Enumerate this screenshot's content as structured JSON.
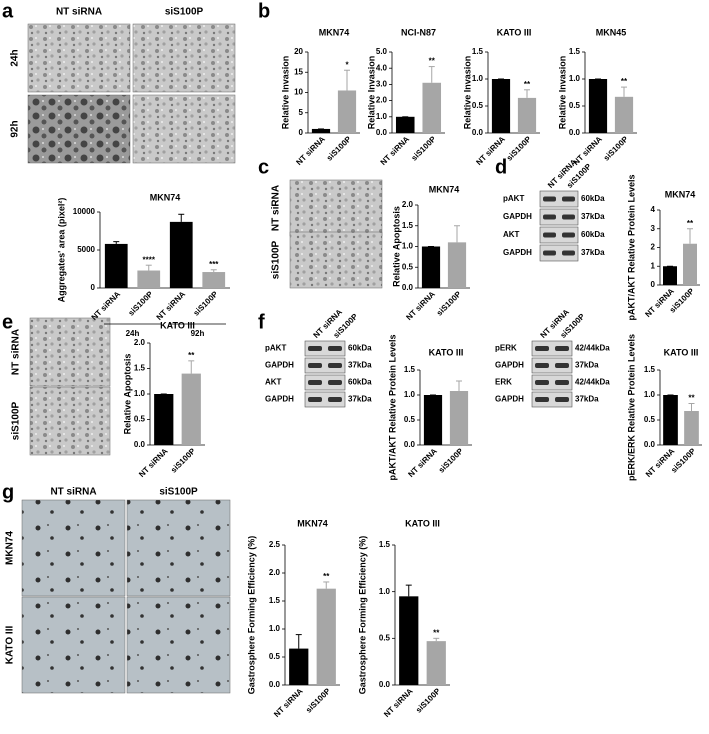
{
  "chart_data": [
    {
      "type": "bar",
      "title": "MKN74",
      "y_label": "Aggregates' area (pixel²)",
      "categories": [
        "NT siRNA",
        "siS100P",
        "NT siRNA",
        "siS100P"
      ],
      "groups": [
        "24h",
        "92h"
      ],
      "values": [
        5800,
        2300,
        8700,
        2100
      ],
      "errors": [
        300,
        700,
        1000,
        300
      ],
      "significance": [
        null,
        "****",
        null,
        "***"
      ],
      "colors": [
        "#000000",
        "#a6a6a6",
        "#000000",
        "#a6a6a6"
      ],
      "ylim": [
        0,
        10000
      ],
      "yticks": [
        0,
        5000,
        10000
      ]
    },
    {
      "type": "bar",
      "title": "MKN74",
      "y_label": "Relative Invasion",
      "categories": [
        "NT siRNA",
        "siS100P"
      ],
      "values": [
        1.0,
        10.5
      ],
      "errors": [
        0,
        5
      ],
      "significance": [
        null,
        "*"
      ],
      "colors": [
        "#000000",
        "#a6a6a6"
      ],
      "ylim": [
        0,
        20
      ],
      "yticks": [
        0,
        5,
        10,
        15,
        20
      ]
    },
    {
      "type": "bar",
      "title": "NCI-N87",
      "y_label": "Relative Invasion",
      "categories": [
        "NT siRNA",
        "siS100P"
      ],
      "values": [
        1.0,
        3.1
      ],
      "errors": [
        0,
        1.0
      ],
      "significance": [
        null,
        "**"
      ],
      "colors": [
        "#000000",
        "#a6a6a6"
      ],
      "ylim": [
        0,
        5
      ],
      "yticks": [
        {
          "value": 0,
          "label": "0.0"
        },
        {
          "value": 1,
          "label": "1.0"
        },
        {
          "value": 2,
          "label": "2.0"
        },
        {
          "value": 3,
          "label": "3.0"
        },
        {
          "value": 4,
          "label": "4.0"
        },
        {
          "value": 5,
          "label": "5.0"
        }
      ]
    },
    {
      "type": "bar",
      "title": "KATO III",
      "y_label": "Relative Invasion",
      "categories": [
        "NT siRNA",
        "siS100P"
      ],
      "values": [
        1.0,
        0.65
      ],
      "errors": [
        0,
        0.15
      ],
      "significance": [
        null,
        "**"
      ],
      "colors": [
        "#000000",
        "#a6a6a6"
      ],
      "ylim": [
        0,
        1.5
      ],
      "yticks": [
        {
          "value": 0,
          "label": "0.0"
        },
        0.5,
        {
          "value": 1,
          "label": "1.0"
        },
        1.5
      ]
    },
    {
      "type": "bar",
      "title": "MKN45",
      "y_label": "Relative Invasion",
      "categories": [
        "NT siRNA",
        "siS100P"
      ],
      "values": [
        1.0,
        0.67
      ],
      "errors": [
        0,
        0.18
      ],
      "significance": [
        null,
        "**"
      ],
      "colors": [
        "#000000",
        "#a6a6a6"
      ],
      "ylim": [
        0,
        1.5
      ],
      "yticks": [
        {
          "value": 0,
          "label": "0.0"
        },
        0.5,
        {
          "value": 1,
          "label": "1.0"
        },
        1.5
      ]
    },
    {
      "type": "bar",
      "title": "MKN74",
      "y_label": "Relative Apoptosis",
      "categories": [
        "NT siRNA",
        "siS100P"
      ],
      "values": [
        1.0,
        1.1
      ],
      "errors": [
        0,
        0.4
      ],
      "significance": [
        null,
        null
      ],
      "colors": [
        "#000000",
        "#a6a6a6"
      ],
      "ylim": [
        0,
        2
      ],
      "yticks": [
        {
          "value": 0,
          "label": "0.0"
        },
        0.5,
        {
          "value": 1,
          "label": "1.0"
        },
        1.5,
        {
          "value": 2,
          "label": "2.0"
        }
      ]
    },
    {
      "type": "bar",
      "title": "MKN74",
      "y_label": "pAKT/AKT Relative Protein Levels",
      "categories": [
        "NT siRNA",
        "siS100P"
      ],
      "values": [
        1.0,
        2.2
      ],
      "errors": [
        0,
        0.8
      ],
      "significance": [
        null,
        "**"
      ],
      "colors": [
        "#000000",
        "#a6a6a6"
      ],
      "ylim": [
        0,
        4
      ],
      "yticks": [
        0,
        1,
        2,
        3,
        4
      ]
    },
    {
      "type": "bar",
      "title": "KATO III",
      "y_label": "Relative Apoptosis",
      "categories": [
        "NT siRNA",
        "siS100P"
      ],
      "values": [
        1.0,
        1.4
      ],
      "errors": [
        0,
        0.25
      ],
      "significance": [
        null,
        "**"
      ],
      "colors": [
        "#000000",
        "#a6a6a6"
      ],
      "ylim": [
        0,
        2
      ],
      "yticks": [
        {
          "value": 0,
          "label": "0.0"
        },
        0.5,
        {
          "value": 1,
          "label": "1.0"
        },
        1.5,
        {
          "value": 2,
          "label": "2.0"
        }
      ]
    },
    {
      "type": "bar",
      "title": "KATO III",
      "y_label": "pAKT/AKT Relative Protein Levels",
      "categories": [
        "NT siRNA",
        "siS100P"
      ],
      "values": [
        1.0,
        1.08
      ],
      "errors": [
        0,
        0.2
      ],
      "significance": [
        null,
        null
      ],
      "colors": [
        "#000000",
        "#a6a6a6"
      ],
      "ylim": [
        0,
        1.5
      ],
      "yticks": [
        {
          "value": 0,
          "label": "0.0"
        },
        0.5,
        {
          "value": 1,
          "label": "1.0"
        },
        1.5
      ]
    },
    {
      "type": "bar",
      "title": "KATO III",
      "y_label": "pERK/ERK Relative Protein Levels",
      "categories": [
        "NT siRNA",
        "siS100P"
      ],
      "values": [
        1.0,
        0.68
      ],
      "errors": [
        0,
        0.15
      ],
      "significance": [
        null,
        "**"
      ],
      "colors": [
        "#000000",
        "#a6a6a6"
      ],
      "ylim": [
        0,
        1.5
      ],
      "yticks": [
        {
          "value": 0,
          "label": "0.0"
        },
        0.5,
        {
          "value": 1,
          "label": "1.0"
        },
        1.5
      ]
    },
    {
      "type": "bar",
      "title": "MKN74",
      "y_label": "Gastrosphere Forming Efficiency (%)",
      "categories": [
        "NT siRNA",
        "siS100P"
      ],
      "values": [
        0.65,
        1.72
      ],
      "errors": [
        0.25,
        0.12
      ],
      "significance": [
        null,
        "**"
      ],
      "colors": [
        "#000000",
        "#a6a6a6"
      ],
      "ylim": [
        0,
        2.5
      ],
      "yticks": [
        {
          "value": 0,
          "label": "0.0"
        },
        0.5,
        {
          "value": 1,
          "label": "1.0"
        },
        1.5,
        {
          "value": 2,
          "label": "2.0"
        },
        2.5
      ]
    },
    {
      "type": "bar",
      "title": "KATO III",
      "y_label": "Gastrosphere Forming Efficiency (%)",
      "categories": [
        "NT siRNA",
        "siS100P"
      ],
      "values": [
        0.95,
        0.47
      ],
      "errors": [
        0.12,
        0.03
      ],
      "significance": [
        null,
        "**"
      ],
      "colors": [
        "#000000",
        "#a6a6a6"
      ],
      "ylim": [
        0,
        1.5
      ],
      "yticks": [
        {
          "value": 0,
          "label": "0.0"
        },
        0.5,
        {
          "value": 1,
          "label": "1.0"
        },
        1.5
      ]
    }
  ],
  "figure": {
    "panel_letters": [
      "a",
      "b",
      "c",
      "d",
      "e",
      "f",
      "g"
    ],
    "image_sets": [
      {
        "columns": [
          "NT siRNA",
          "siS100P"
        ],
        "rows": [
          "24h",
          "92h"
        ]
      },
      {
        "rows": [
          "NT siRNA",
          "siS100P"
        ]
      },
      {
        "rows": [
          "NT siRNA",
          "siS100P"
        ]
      },
      {
        "columns": [
          "NT siRNA",
          "siS100P"
        ],
        "rows": [
          "MKN74",
          "KATO III"
        ]
      }
    ],
    "blots": [
      {
        "columns": [
          "NT siRNA",
          "siS100P"
        ],
        "rows": [
          {
            "protein": "pAKT",
            "size": "60kDa"
          },
          {
            "protein": "GAPDH",
            "size": "37kDa"
          },
          {
            "protein": "AKT",
            "size": "60kDa"
          },
          {
            "protein": "GAPDH",
            "size": "37kDa"
          }
        ]
      },
      {
        "columns": [
          "NT siRNA",
          "siS100P"
        ],
        "rows": [
          {
            "protein": "pAKT",
            "size": "60kDa"
          },
          {
            "protein": "GAPDH",
            "size": "37kDa"
          },
          {
            "protein": "AKT",
            "size": "60kDa"
          },
          {
            "protein": "GAPDH",
            "size": "37kDa"
          }
        ]
      },
      {
        "columns": [
          "NT siRNA",
          "siS100P"
        ],
        "rows": [
          {
            "protein": "pERK",
            "size": "42/44kDa"
          },
          {
            "protein": "GAPDH",
            "size": "37kDa"
          },
          {
            "protein": "ERK",
            "size": "42/44kDa"
          },
          {
            "protein": "GAPDH",
            "size": "37kDa"
          }
        ]
      }
    ]
  }
}
